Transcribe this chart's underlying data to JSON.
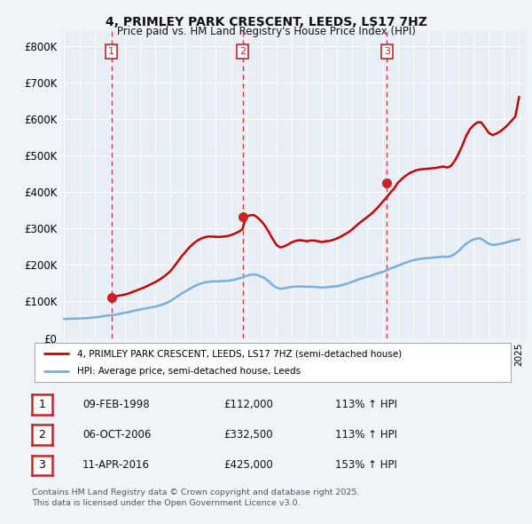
{
  "title": "4, PRIMLEY PARK CRESCENT, LEEDS, LS17 7HZ",
  "subtitle": "Price paid vs. HM Land Registry's House Price Index (HPI)",
  "ylabel_ticks": [
    "£0",
    "£100K",
    "£200K",
    "£300K",
    "£400K",
    "£500K",
    "£600K",
    "£700K",
    "£800K"
  ],
  "ytick_values": [
    0,
    100000,
    200000,
    300000,
    400000,
    500000,
    600000,
    700000,
    800000
  ],
  "ylim": [
    0,
    840000
  ],
  "xlim_start": 1994.8,
  "xlim_end": 2025.5,
  "background_color": "#f0f4f8",
  "chart_bg_color": "#e8eef5",
  "grid_color": "#ffffff",
  "red_line_color": "#cc0000",
  "blue_line_color": "#7aade0",
  "vline_color": "#cc2222",
  "purchases": [
    {
      "date_num": 1998.11,
      "price": 112000,
      "label": "1"
    },
    {
      "date_num": 2006.77,
      "price": 332500,
      "label": "2"
    },
    {
      "date_num": 2016.28,
      "price": 425000,
      "label": "3"
    }
  ],
  "table_rows": [
    {
      "num": "1",
      "date": "09-FEB-1998",
      "price": "£112,000",
      "hpi": "113% ↑ HPI"
    },
    {
      "num": "2",
      "date": "06-OCT-2006",
      "price": "£332,500",
      "hpi": "113% ↑ HPI"
    },
    {
      "num": "3",
      "date": "11-APR-2016",
      "price": "£425,000",
      "hpi": "153% ↑ HPI"
    }
  ],
  "legend_line1": "4, PRIMLEY PARK CRESCENT, LEEDS, LS17 7HZ (semi-detached house)",
  "legend_line2": "HPI: Average price, semi-detached house, Leeds",
  "footer_line1": "Contains HM Land Registry data © Crown copyright and database right 2025.",
  "footer_line2": "This data is licensed under the Open Government Licence v3.0.",
  "hpi_data": {
    "dates": [
      1995.0,
      1995.25,
      1995.5,
      1995.75,
      1996.0,
      1996.25,
      1996.5,
      1996.75,
      1997.0,
      1997.25,
      1997.5,
      1997.75,
      1998.0,
      1998.25,
      1998.5,
      1998.75,
      1999.0,
      1999.25,
      1999.5,
      1999.75,
      2000.0,
      2000.25,
      2000.5,
      2000.75,
      2001.0,
      2001.25,
      2001.5,
      2001.75,
      2002.0,
      2002.25,
      2002.5,
      2002.75,
      2003.0,
      2003.25,
      2003.5,
      2003.75,
      2004.0,
      2004.25,
      2004.5,
      2004.75,
      2005.0,
      2005.25,
      2005.5,
      2005.75,
      2006.0,
      2006.25,
      2006.5,
      2006.75,
      2007.0,
      2007.25,
      2007.5,
      2007.75,
      2008.0,
      2008.25,
      2008.5,
      2008.75,
      2009.0,
      2009.25,
      2009.5,
      2009.75,
      2010.0,
      2010.25,
      2010.5,
      2010.75,
      2011.0,
      2011.25,
      2011.5,
      2011.75,
      2012.0,
      2012.25,
      2012.5,
      2012.75,
      2013.0,
      2013.25,
      2013.5,
      2013.75,
      2014.0,
      2014.25,
      2014.5,
      2014.75,
      2015.0,
      2015.25,
      2015.5,
      2015.75,
      2016.0,
      2016.25,
      2016.5,
      2016.75,
      2017.0,
      2017.25,
      2017.5,
      2017.75,
      2018.0,
      2018.25,
      2018.5,
      2018.75,
      2019.0,
      2019.25,
      2019.5,
      2019.75,
      2020.0,
      2020.25,
      2020.5,
      2020.75,
      2021.0,
      2021.25,
      2021.5,
      2021.75,
      2022.0,
      2022.25,
      2022.5,
      2022.75,
      2023.0,
      2023.25,
      2023.5,
      2023.75,
      2024.0,
      2024.25,
      2024.5,
      2024.75,
      2025.0
    ],
    "values": [
      52000,
      52500,
      52800,
      53000,
      53500,
      54000,
      54500,
      55500,
      56500,
      57500,
      59000,
      61000,
      62000,
      63000,
      65000,
      67000,
      69000,
      71000,
      73500,
      76000,
      78000,
      80000,
      82000,
      84000,
      86000,
      89000,
      92000,
      96000,
      101000,
      108000,
      115000,
      122000,
      128000,
      134000,
      140000,
      145000,
      149000,
      152000,
      154000,
      155000,
      155000,
      155500,
      156000,
      156500,
      158000,
      160000,
      163000,
      166000,
      170000,
      173000,
      174000,
      172000,
      168000,
      163000,
      155000,
      145000,
      138000,
      135000,
      136000,
      138000,
      140000,
      141000,
      141500,
      141000,
      140000,
      140500,
      140000,
      139000,
      138000,
      139000,
      140000,
      141000,
      142000,
      144000,
      147000,
      150000,
      154000,
      158000,
      162000,
      165000,
      168000,
      171000,
      175000,
      178000,
      181000,
      185000,
      190000,
      194000,
      198000,
      202000,
      206000,
      210000,
      213000,
      215000,
      217000,
      218000,
      219000,
      220000,
      221000,
      222000,
      223000,
      222000,
      224000,
      230000,
      238000,
      248000,
      258000,
      265000,
      270000,
      273000,
      272000,
      265000,
      258000,
      255000,
      256000,
      258000,
      260000,
      263000,
      266000,
      268000,
      270000
    ]
  },
  "price_data": {
    "dates": [
      1995.0,
      1995.25,
      1995.5,
      1995.75,
      1996.0,
      1996.25,
      1996.5,
      1996.75,
      1997.0,
      1997.25,
      1997.5,
      1997.75,
      1998.0,
      1998.25,
      1998.5,
      1998.75,
      1999.0,
      1999.25,
      1999.5,
      1999.75,
      2000.0,
      2000.25,
      2000.5,
      2000.75,
      2001.0,
      2001.25,
      2001.5,
      2001.75,
      2002.0,
      2002.25,
      2002.5,
      2002.75,
      2003.0,
      2003.25,
      2003.5,
      2003.75,
      2004.0,
      2004.25,
      2004.5,
      2004.75,
      2005.0,
      2005.25,
      2005.5,
      2005.75,
      2006.0,
      2006.25,
      2006.5,
      2006.75,
      2007.0,
      2007.25,
      2007.5,
      2007.75,
      2008.0,
      2008.25,
      2008.5,
      2008.75,
      2009.0,
      2009.25,
      2009.5,
      2009.75,
      2010.0,
      2010.25,
      2010.5,
      2010.75,
      2011.0,
      2011.25,
      2011.5,
      2011.75,
      2012.0,
      2012.25,
      2012.5,
      2012.75,
      2013.0,
      2013.25,
      2013.5,
      2013.75,
      2014.0,
      2014.25,
      2014.5,
      2014.75,
      2015.0,
      2015.25,
      2015.5,
      2015.75,
      2016.0,
      2016.25,
      2016.5,
      2016.75,
      2017.0,
      2017.25,
      2017.5,
      2017.75,
      2018.0,
      2018.25,
      2018.5,
      2018.75,
      2019.0,
      2019.25,
      2019.5,
      2019.75,
      2020.0,
      2020.25,
      2020.5,
      2020.75,
      2021.0,
      2021.25,
      2021.5,
      2021.75,
      2022.0,
      2022.25,
      2022.5,
      2022.75,
      2023.0,
      2023.25,
      2023.5,
      2023.75,
      2024.0,
      2024.25,
      2024.5,
      2024.75,
      2025.0
    ],
    "values": [
      null,
      null,
      null,
      null,
      null,
      null,
      null,
      null,
      null,
      null,
      null,
      null,
      112000,
      113500,
      115000,
      117000,
      119000,
      122000,
      126000,
      130000,
      134000,
      138000,
      143000,
      148000,
      153000,
      159000,
      166000,
      174000,
      183000,
      196000,
      210000,
      224000,
      236000,
      248000,
      258000,
      266000,
      272000,
      276000,
      278000,
      278000,
      277000,
      277000,
      278000,
      279000,
      282000,
      286000,
      291000,
      298000,
      332500,
      336000,
      337000,
      330000,
      320000,
      307000,
      290000,
      271000,
      255000,
      248000,
      251000,
      256000,
      262000,
      266000,
      268000,
      267000,
      265000,
      267000,
      267000,
      265000,
      263000,
      265000,
      266000,
      269000,
      273000,
      278000,
      284000,
      290000,
      298000,
      307000,
      316000,
      324000,
      332000,
      340000,
      350000,
      361000,
      373000,
      385000,
      398000,
      409000,
      425000,
      435000,
      444000,
      451000,
      456000,
      460000,
      462000,
      463000,
      464000,
      465000,
      466000,
      468000,
      470000,
      467000,
      471000,
      485000,
      504000,
      527000,
      553000,
      572000,
      583000,
      591000,
      591000,
      577000,
      562000,
      556000,
      560000,
      566000,
      574000,
      584000,
      595000,
      607000,
      660000
    ]
  }
}
